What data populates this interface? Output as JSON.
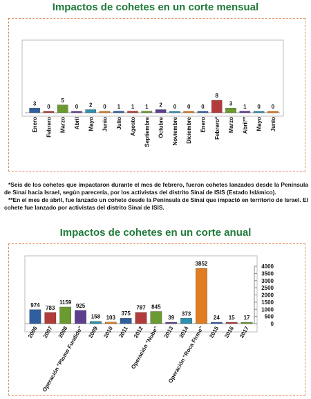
{
  "chart_data": [
    {
      "type": "bar",
      "title": "Impactos de cohetes en un corte mensual",
      "categories": [
        "Enero",
        "Febrero",
        "Marzo",
        "Abril",
        "Mayo",
        "Junio",
        "Julio",
        "Agosto",
        "Septiembre",
        "Octubre",
        "Noviembre",
        "Diciembre",
        "Enero",
        "Febrero*",
        "Marzo",
        "Abril**",
        "Mayo",
        "Junio"
      ],
      "values": [
        3,
        0,
        5,
        0,
        2,
        0,
        1,
        1,
        1,
        2,
        0,
        0,
        0,
        8,
        3,
        1,
        0,
        0
      ],
      "colors": [
        "#2f5f9e",
        "#b23b3b",
        "#6b9a30",
        "#5c3f8d",
        "#2e90ae",
        "#e07c22"
      ]
    },
    {
      "type": "bar",
      "title": "Impactos de cohetes en un corte anual",
      "categories": [
        "2006",
        "2007",
        "2008",
        "Operación \"Plomo Fundido\"",
        "2009",
        "2010",
        "2011",
        "2012",
        "Operación \"Nube\"",
        "2013",
        "2014",
        "Operación \"Roca Firme\"",
        "2015",
        "2016",
        "2017"
      ],
      "values": [
        974,
        783,
        1159,
        925,
        158,
        103,
        375,
        787,
        845,
        39,
        373,
        3852,
        24,
        15,
        17
      ],
      "colors": [
        "#2f5f9e",
        "#b23b3b",
        "#6b9a30",
        "#5c3f8d",
        "#2e90ae",
        "#e07c22"
      ],
      "ylim": [
        0,
        4000
      ],
      "yticks": [
        0,
        500,
        1000,
        1500,
        2000,
        2500,
        3000,
        3500,
        4000
      ]
    }
  ],
  "notes": [
    "*Seis de los cohetes que impactaron durante el mes de febrero, fueron cohetes lanzados desde la Península de Sinaí hacia Israel, según parecería, por los activistas del distrito Sinaí de ISIS (Estado Islámico).",
    "**En el mes de abril, fue lanzado un cohete desde la Península de Sinaí que impactó en territorio de Israel. El cohete fue lanzado  por activistas del distrito Sinaí de ISIS."
  ]
}
